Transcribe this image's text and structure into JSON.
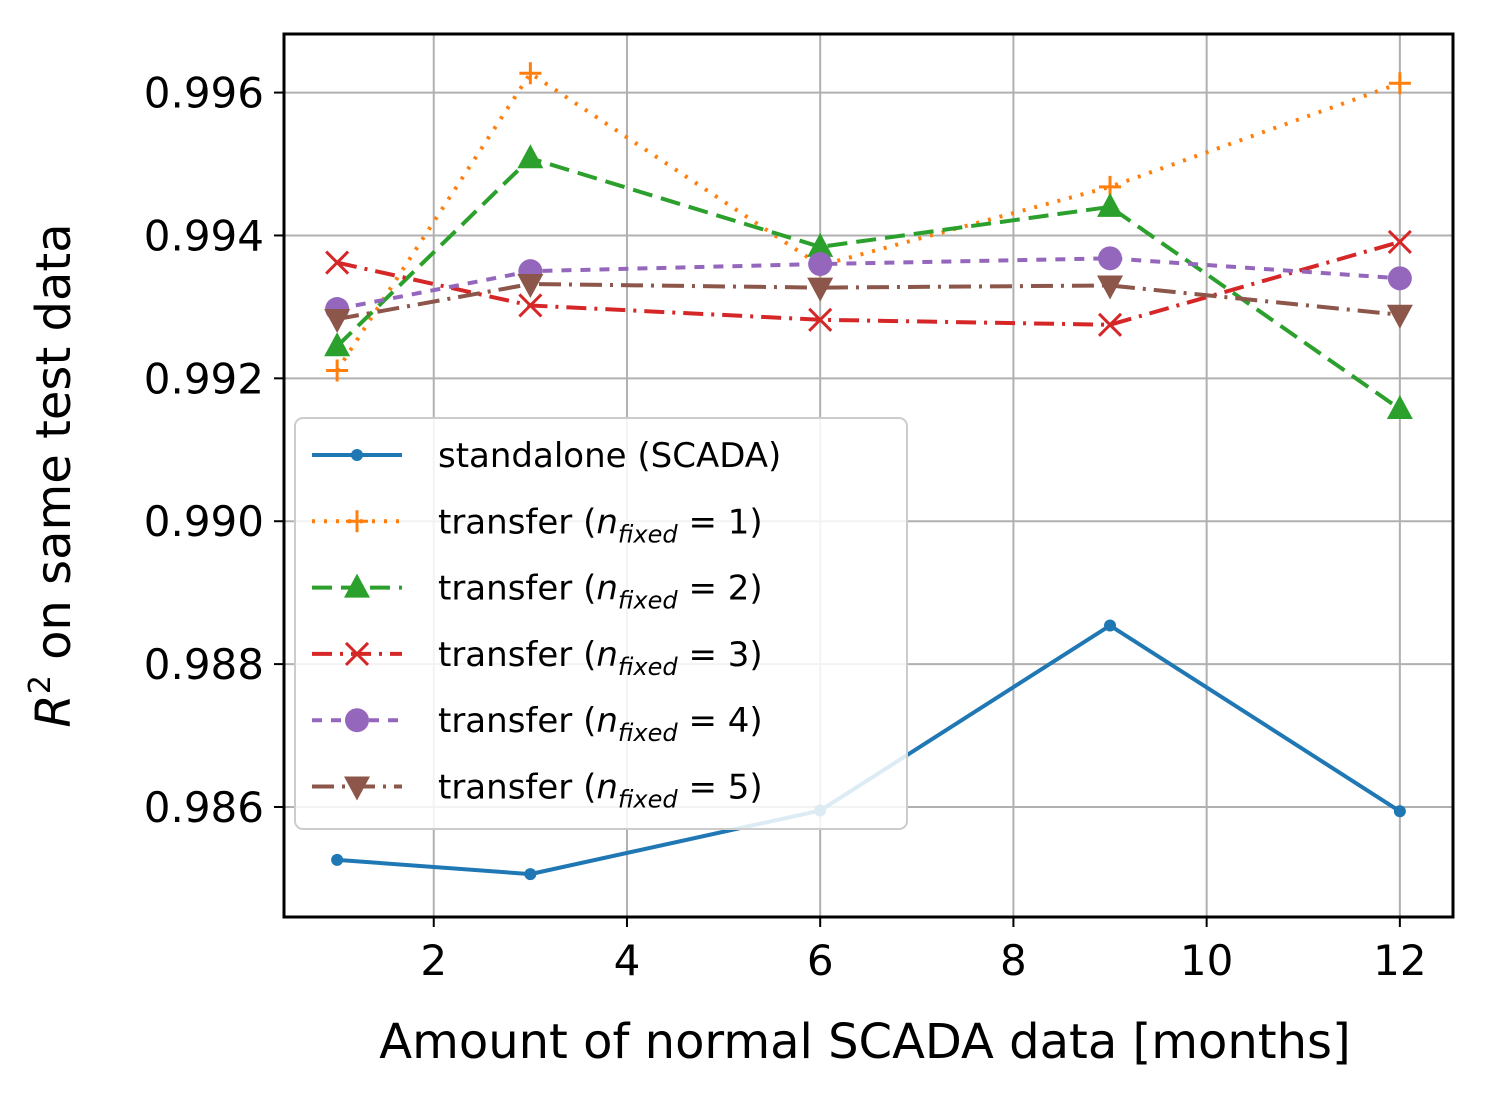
{
  "chart_data": {
    "type": "line",
    "title": "",
    "xlabel": "Amount of normal SCADA data [months]",
    "ylabel": {
      "base": "R",
      "sup": "2",
      "rest": " on same test data"
    },
    "x": [
      1,
      3,
      6,
      9,
      12
    ],
    "xlim": [
      0.45,
      12.55
    ],
    "ylim": [
      0.98446,
      0.99682
    ],
    "xticks": [
      2,
      4,
      6,
      8,
      10,
      12
    ],
    "xtick_labels": [
      "2",
      "4",
      "6",
      "8",
      "10",
      "12"
    ],
    "yticks": [
      0.986,
      0.988,
      0.99,
      0.992,
      0.994,
      0.996
    ],
    "ytick_labels": [
      "0.986",
      "0.988",
      "0.990",
      "0.992",
      "0.994",
      "0.996"
    ],
    "grid": true,
    "legend_position": "center-left",
    "series": [
      {
        "name": "standalone (SCADA)",
        "legend_prefix": "standalone (SCADA)",
        "n": "",
        "color": "#1f77b4",
        "dash": "",
        "marker": "dot",
        "values": [
          0.98526,
          0.98506,
          0.98595,
          0.98854,
          0.98594
        ]
      },
      {
        "name": "transfer (n_fixed = 1)",
        "legend_prefix": "transfer (",
        "n": "1",
        "color": "#ff7f0e",
        "dash": "3 9",
        "marker": "plus",
        "values": [
          0.99211,
          0.99627,
          0.99358,
          0.99468,
          0.99613
        ]
      },
      {
        "name": "transfer (n_fixed = 2)",
        "legend_prefix": "transfer (",
        "n": "2",
        "color": "#2ca02c",
        "dash": "20 9",
        "marker": "triangle-up",
        "values": [
          0.99245,
          0.99508,
          0.99384,
          0.9944,
          0.99157
        ]
      },
      {
        "name": "transfer (n_fixed = 3)",
        "legend_prefix": "transfer (",
        "n": "3",
        "color": "#d62728",
        "dash": "20 8 3 8",
        "marker": "x",
        "values": [
          0.99362,
          0.99302,
          0.99282,
          0.99275,
          0.99391
        ]
      },
      {
        "name": "transfer (n_fixed = 4)",
        "legend_prefix": "transfer (",
        "n": "4",
        "color": "#9467bd",
        "dash": "10 9",
        "marker": "circle",
        "values": [
          0.99297,
          0.9935,
          0.9936,
          0.99368,
          0.9934
        ]
      },
      {
        "name": "transfer (n_fixed = 5)",
        "legend_prefix": "transfer (",
        "n": "5",
        "color": "#8c564b",
        "dash": "22 8 3 8",
        "marker": "triangle-down",
        "values": [
          0.99283,
          0.99332,
          0.99327,
          0.9933,
          0.99289
        ]
      }
    ],
    "legend_sub": "fixed",
    "legend_n": "n"
  }
}
